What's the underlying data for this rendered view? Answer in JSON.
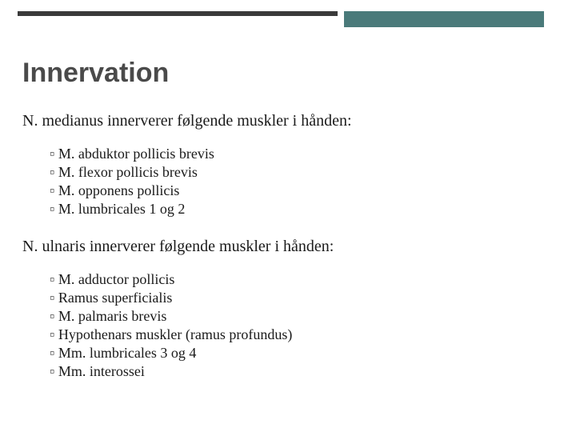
{
  "colors": {
    "bar_dark": "#3a3a3a",
    "bar_teal": "#4a7a7a",
    "title_color": "#4a4a4a",
    "text_color": "#1a1a1a",
    "background": "#ffffff"
  },
  "typography": {
    "title_fontsize": 34,
    "lead_fontsize": 20,
    "bullet_fontsize": 18,
    "title_font": "Verdana",
    "body_font": "Georgia"
  },
  "title": "Innervation",
  "sections": [
    {
      "lead": "N. medianus innerverer følgende muskler i hånden:",
      "items": [
        "M. abduktor pollicis brevis",
        "M. flexor pollicis brevis",
        "M. opponens pollicis",
        "M. lumbricales 1 og 2"
      ]
    },
    {
      "lead": "N. ulnaris innerverer følgende muskler i hånden:",
      "items": [
        "M. adductor pollicis",
        "Ramus superficialis",
        "M. palmaris brevis",
        "Hypothenars muskler (ramus profundus)",
        "Mm. lumbricales 3 og 4",
        "Mm. interossei"
      ]
    }
  ]
}
